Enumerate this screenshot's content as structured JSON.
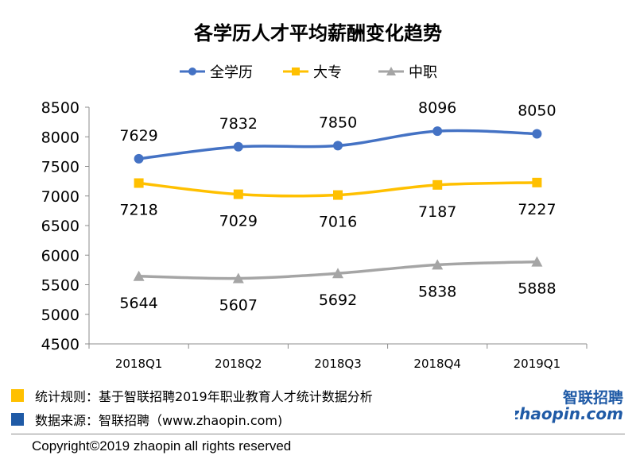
{
  "chart_data": {
    "type": "line",
    "title": "各学历人才平均薪酬变化趋势",
    "categories": [
      "2018Q1",
      "2018Q2",
      "2018Q3",
      "2018Q4",
      "2019Q1"
    ],
    "series": [
      {
        "name": "全学历",
        "values": [
          7629,
          7832,
          7850,
          8096,
          8050
        ],
        "color": "#4472C4",
        "marker": "circle",
        "label_position": "above"
      },
      {
        "name": "大专",
        "values": [
          7218,
          7029,
          7016,
          7187,
          7227
        ],
        "color": "#FFC000",
        "marker": "square",
        "label_position": "below"
      },
      {
        "name": "中职",
        "values": [
          5644,
          5607,
          5692,
          5838,
          5888
        ],
        "color": "#A5A5A5",
        "marker": "triangle",
        "label_position": "below"
      }
    ],
    "yticks": [
      "8500",
      "8000",
      "7500",
      "7000",
      "6500",
      "6000",
      "5500",
      "5000",
      "4500"
    ],
    "ylim": [
      4500,
      8500
    ],
    "legend_position": "top",
    "grid": false,
    "smooth": true
  },
  "notes": [
    {
      "text": "统计规则：基于智联招聘2019年职业教育人才统计数据分析",
      "color": "#FFC000"
    },
    {
      "text": "数据来源：智联招聘（www.zhaopin.com)",
      "color": "#1F5AA6"
    }
  ],
  "copyright": "Copyright©2019 zhaopin all rights reserved",
  "logo": {
    "cn": "智联招聘",
    "en": "zhaopin.com",
    "accent": "#F5A623",
    "blue": "#1F5AA6"
  }
}
